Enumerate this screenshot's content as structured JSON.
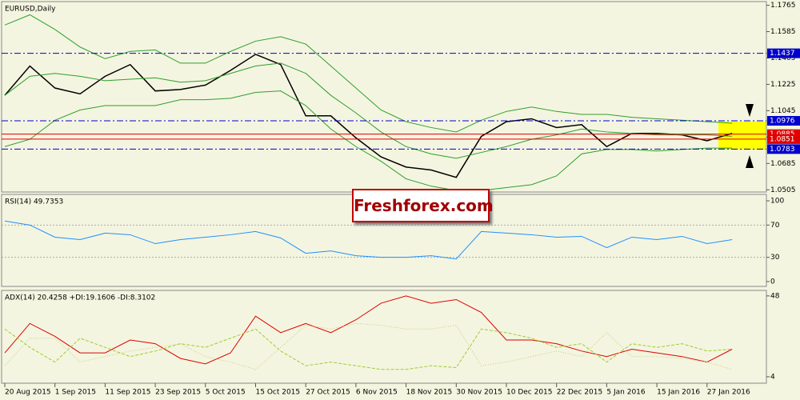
{
  "chart_data": [
    {
      "type": "line",
      "title": "EURUSD,Daily",
      "watermark": "Freshforex.com",
      "ylim": [
        1.049,
        1.179
      ],
      "yticks": [
        1.1765,
        1.1585,
        1.1405,
        1.1225,
        1.1045,
        1.0865,
        1.0685,
        1.0505
      ],
      "series": [
        {
          "color": "#000000",
          "values": [
            1.115,
            1.135,
            1.12,
            1.116,
            1.128,
            1.136,
            1.118,
            1.119,
            1.122,
            1.132,
            1.143,
            1.136,
            1.101,
            1.101,
            1.086,
            1.073,
            1.066,
            1.064,
            1.059,
            1.087,
            1.097,
            1.099,
            1.093,
            1.095,
            1.08,
            1.089,
            1.089,
            1.088,
            1.084,
            1.089
          ]
        },
        {
          "color": "#2e9e2e",
          "values": [
            1.163,
            1.17,
            1.16,
            1.148,
            1.14,
            1.145,
            1.146,
            1.137,
            1.137,
            1.145,
            1.152,
            1.155,
            1.15,
            1.135,
            1.12,
            1.105,
            1.097,
            1.093,
            1.09,
            1.098,
            1.104,
            1.107,
            1.104,
            1.102,
            1.102,
            1.1,
            1.099,
            1.098,
            1.097,
            1.096
          ]
        },
        {
          "color": "#2e9e2e",
          "values": [
            1.115,
            1.128,
            1.13,
            1.128,
            1.125,
            1.126,
            1.127,
            1.124,
            1.125,
            1.13,
            1.135,
            1.137,
            1.13,
            1.115,
            1.103,
            1.09,
            1.08,
            1.075,
            1.072,
            1.076,
            1.08,
            1.085,
            1.088,
            1.092,
            1.09,
            1.089,
            1.088,
            1.088,
            1.088,
            1.087
          ]
        },
        {
          "color": "#2e9e2e",
          "values": [
            1.08,
            1.085,
            1.098,
            1.105,
            1.108,
            1.108,
            1.108,
            1.112,
            1.112,
            1.113,
            1.117,
            1.118,
            1.108,
            1.092,
            1.08,
            1.07,
            1.058,
            1.053,
            1.05,
            1.05,
            1.052,
            1.054,
            1.06,
            1.075,
            1.078,
            1.078,
            1.077,
            1.078,
            1.079,
            1.079
          ]
        }
      ],
      "levels": [
        {
          "value": 1.1437,
          "color": "#0000cc",
          "dash": true
        },
        {
          "value": 1.0976,
          "color": "#0000cc",
          "dash": true
        },
        {
          "value": 1.0885,
          "color": "#e00000",
          "dash": false
        },
        {
          "value": 1.0851,
          "color": "#e00000",
          "dash": false
        },
        {
          "value": 1.0783,
          "color": "#0000cc",
          "dash": true
        }
      ]
    },
    {
      "type": "line",
      "title": "RSI(14) 49.7353",
      "ylim": [
        -6,
        108
      ],
      "yticks": [
        100,
        70,
        30,
        0
      ],
      "guides": [
        70,
        30
      ],
      "series": [
        {
          "color": "#1e90ff",
          "values": [
            75,
            70,
            55,
            52,
            60,
            58,
            47,
            52,
            55,
            58,
            62,
            54,
            35,
            38,
            32,
            30,
            30,
            32,
            28,
            62,
            60,
            58,
            55,
            56,
            42,
            55,
            52,
            56,
            47,
            52
          ]
        }
      ]
    },
    {
      "type": "line",
      "title": "ADX(14) 20.4258 +DI:19.1606 -DI:8.3102",
      "ylim": [
        0.5,
        51
      ],
      "yticks": [
        48,
        4
      ],
      "categories": [
        "20 Aug 2015",
        null,
        "1 Sep 2015",
        null,
        "11 Sep 2015",
        null,
        "23 Sep 2015",
        null,
        "5 Oct 2015",
        null,
        "15 Oct 2015",
        null,
        "27 Oct 2015",
        null,
        "6 Nov 2015",
        null,
        "18 Nov 2015",
        null,
        "30 Nov 2015",
        null,
        "10 Dec 2015",
        null,
        "22 Dec 2015",
        null,
        "5 Jan 2016",
        null,
        "15 Jan 2016",
        null,
        "27 Jan 2016",
        null
      ],
      "series": [
        {
          "color": "#dd0000",
          "dash": "",
          "values": [
            17,
            33,
            26,
            17,
            17,
            24,
            22,
            14,
            11,
            17,
            37,
            28,
            33,
            28,
            35,
            44,
            48,
            44,
            46,
            39,
            24,
            24,
            22,
            18,
            15,
            19,
            17,
            15,
            12,
            19
          ]
        },
        {
          "color": "#9acd32",
          "dash": "4 2",
          "values": [
            30,
            20,
            12,
            25,
            20,
            15,
            18,
            22,
            20,
            25,
            30,
            18,
            10,
            12,
            10,
            8,
            8,
            10,
            9,
            30,
            28,
            25,
            20,
            22,
            12,
            22,
            20,
            22,
            18,
            19
          ]
        },
        {
          "color": "#c8c878",
          "dash": "1 2",
          "values": [
            10,
            25,
            25,
            12,
            15,
            18,
            20,
            22,
            15,
            12,
            8,
            20,
            32,
            30,
            33,
            32,
            30,
            30,
            32,
            10,
            12,
            15,
            18,
            15,
            28,
            15,
            15,
            14,
            12,
            8
          ]
        }
      ]
    }
  ]
}
